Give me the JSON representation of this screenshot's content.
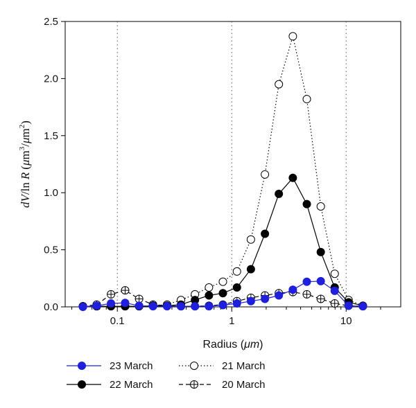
{
  "chart_data": {
    "type": "line",
    "xscale": "log",
    "xlim": [
      0.035,
      30
    ],
    "ylim": [
      0,
      2.5
    ],
    "xlabel_text": "Radius (",
    "xlabel_unit": "μm",
    "xlabel_close": ")",
    "ylabel_lead": "dV",
    "ylabel_mid": "/ln",
    "ylabel_r": "R",
    "ylabel_units_open": "(",
    "ylabel_mu1": "μ",
    "ylabel_m3": "m",
    "ylabel_sup3": "3",
    "ylabel_slash": "/",
    "ylabel_mu2": "μ",
    "ylabel_m2": "m",
    "ylabel_sup2": "2",
    "ylabel_close": ")",
    "x_ticks": [
      0.1,
      1,
      10
    ],
    "x_tick_labels": [
      "0.1",
      "1",
      "10"
    ],
    "y_ticks": [
      0,
      0.5,
      1.0,
      1.5,
      2.0,
      2.5
    ],
    "y_tick_labels": [
      "0.0",
      "0.5",
      "1.0",
      "1.5",
      "2.0",
      "2.5"
    ],
    "vlines": [
      0.1,
      1,
      10
    ],
    "series": [
      {
        "name": "23 March",
        "style": "solid",
        "marker": "filled",
        "color": "#1f1fe0",
        "x": [
          0.05,
          0.066,
          0.088,
          0.117,
          0.155,
          0.205,
          0.272,
          0.36,
          0.477,
          0.632,
          0.837,
          1.11,
          1.47,
          1.95,
          2.58,
          3.42,
          4.53,
          6.0,
          7.94,
          10.5,
          14.0
        ],
        "y": [
          0.0,
          0.01,
          0.03,
          0.035,
          0.01,
          0.005,
          0.005,
          0.005,
          0.005,
          0.005,
          0.015,
          0.03,
          0.05,
          0.07,
          0.1,
          0.15,
          0.22,
          0.225,
          0.14,
          0.01,
          0.005
        ]
      },
      {
        "name": "22 March",
        "style": "solid",
        "marker": "filled",
        "color": "#000000",
        "x": [
          0.05,
          0.066,
          0.088,
          0.117,
          0.155,
          0.205,
          0.272,
          0.36,
          0.477,
          0.632,
          0.837,
          1.11,
          1.47,
          1.95,
          2.58,
          3.42,
          4.53,
          6.0,
          7.94,
          10.5,
          14.0
        ],
        "y": [
          0.005,
          0.005,
          0.005,
          0.005,
          0.005,
          0.01,
          0.01,
          0.02,
          0.06,
          0.1,
          0.12,
          0.17,
          0.33,
          0.64,
          0.99,
          1.13,
          0.9,
          0.48,
          0.17,
          0.04,
          0.01
        ]
      },
      {
        "name": "21 March",
        "style": "dotted",
        "marker": "open",
        "color": "#000000",
        "x": [
          0.05,
          0.066,
          0.088,
          0.117,
          0.155,
          0.205,
          0.272,
          0.36,
          0.477,
          0.632,
          0.837,
          1.11,
          1.47,
          1.95,
          2.58,
          3.42,
          4.53,
          6.0,
          7.94,
          10.5,
          14.0
        ],
        "y": [
          0.005,
          0.005,
          0.005,
          0.005,
          0.005,
          0.01,
          0.02,
          0.06,
          0.11,
          0.17,
          0.22,
          0.31,
          0.59,
          1.16,
          1.95,
          2.37,
          1.82,
          0.88,
          0.29,
          0.06,
          0.01
        ]
      },
      {
        "name": "20 March",
        "style": "dashed",
        "marker": "crossed",
        "color": "#000000",
        "x": [
          0.05,
          0.066,
          0.088,
          0.117,
          0.155,
          0.205,
          0.272,
          0.36,
          0.477,
          0.632,
          0.837,
          1.11,
          1.47,
          1.95,
          2.58,
          3.42,
          4.53,
          6.0,
          7.94,
          10.5,
          14.0
        ],
        "y": [
          0.005,
          0.02,
          0.11,
          0.145,
          0.07,
          0.02,
          0.01,
          0.005,
          0.005,
          0.01,
          0.02,
          0.05,
          0.08,
          0.1,
          0.12,
          0.13,
          0.11,
          0.07,
          0.03,
          0.01,
          0.005
        ]
      }
    ],
    "legend_position": "bottom"
  }
}
